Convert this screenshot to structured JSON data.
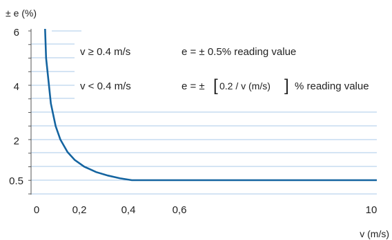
{
  "chart_data": {
    "type": "line",
    "ylabel": "± e (%)",
    "xlabel": "v (m/s)",
    "y_ticks": [
      "6",
      "4",
      "2",
      "0.5"
    ],
    "x_ticks": [
      "0",
      "0,2",
      "0,4",
      "0,6",
      "10"
    ],
    "grid": true,
    "colors": {
      "line": "#1464a0",
      "grid": "#a9c8e8",
      "axis": "#555555"
    },
    "series": [
      {
        "x": [
          0.02,
          0.04,
          0.06,
          0.08,
          0.1,
          0.13,
          0.16,
          0.2,
          0.25,
          0.3,
          0.35,
          0.4,
          10
        ],
        "y": [
          10,
          5,
          3.33,
          2.5,
          2.0,
          1.54,
          1.25,
          1.0,
          0.8,
          0.67,
          0.57,
          0.5,
          0.5
        ]
      }
    ],
    "annotations": [
      {
        "condition": "v ≥ 0.4 m/s",
        "formula": "e = ± 0.5% reading value"
      },
      {
        "condition": "v < 0.4 m/s",
        "formula_prefix": "e = ±",
        "formula_inner": "0.2 / v (m/s)",
        "formula_suffix": "% reading value"
      }
    ]
  }
}
